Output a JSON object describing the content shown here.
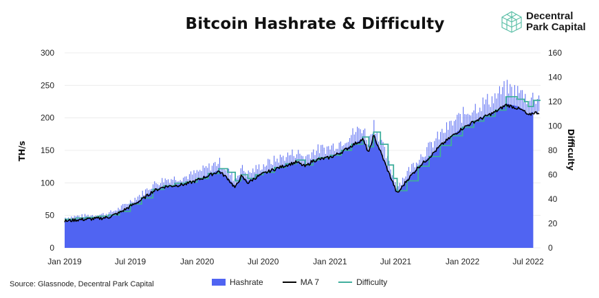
{
  "title": "Bitcoin Hashrate & Difficulty",
  "logo": {
    "line1": "Decentral",
    "line2": "Park Capital",
    "icon": "cube-icon"
  },
  "source": "Source: Glassnode, Decentral Park Capital",
  "colors": {
    "hashrate": "#5064f2",
    "ma7": "#000000",
    "difficulty": "#3fae9c"
  },
  "chart_data": {
    "type": "area",
    "title": "Bitcoin Hashrate & Difficulty",
    "ylabel": "TH/s",
    "y2label": "Difficulty",
    "ylim": [
      0,
      300
    ],
    "y2lim": [
      0,
      160
    ],
    "yticks": [
      "0",
      "50",
      "100",
      "150",
      "200",
      "250",
      "300"
    ],
    "y2ticks": [
      "0",
      "20",
      "40",
      "60",
      "80",
      "100",
      "120",
      "140",
      "160"
    ],
    "xticks": [
      "Jan 2019",
      "Jul 2019",
      "Jan 2020",
      "Jul 2020",
      "Jan 2021",
      "Jul 2021",
      "Jan 2022",
      "Jul 2022"
    ],
    "grid": true,
    "legend_position": "bottom",
    "series": [
      {
        "name": "Hashrate",
        "type": "area",
        "axis": "left",
        "x": [
          "2019-01-01",
          "2019-02-01",
          "2019-03-01",
          "2019-04-01",
          "2019-05-01",
          "2019-06-01",
          "2019-07-01",
          "2019-08-01",
          "2019-09-01",
          "2019-10-01",
          "2019-11-01",
          "2019-12-01",
          "2020-01-01",
          "2020-02-01",
          "2020-03-01",
          "2020-03-25",
          "2020-04-15",
          "2020-05-01",
          "2020-05-20",
          "2020-06-10",
          "2020-07-01",
          "2020-08-01",
          "2020-09-01",
          "2020-10-01",
          "2020-10-25",
          "2020-11-15",
          "2020-12-01",
          "2021-01-01",
          "2021-02-01",
          "2021-03-01",
          "2021-04-01",
          "2021-04-18",
          "2021-05-01",
          "2021-05-20",
          "2021-06-10",
          "2021-06-25",
          "2021-07-05",
          "2021-08-01",
          "2021-09-01",
          "2021-10-01",
          "2021-11-01",
          "2021-12-01",
          "2022-01-01",
          "2022-02-01",
          "2022-03-01",
          "2022-04-01",
          "2022-05-01",
          "2022-06-01",
          "2022-06-20",
          "2022-07-01",
          "2022-07-15"
        ],
        "values": [
          42,
          44,
          45,
          46,
          48,
          55,
          65,
          75,
          88,
          95,
          97,
          99,
          105,
          112,
          120,
          108,
          95,
          112,
          103,
          110,
          115,
          122,
          128,
          133,
          126,
          135,
          137,
          140,
          148,
          158,
          168,
          148,
          175,
          150,
          120,
          100,
          85,
          105,
          125,
          140,
          158,
          172,
          185,
          195,
          202,
          210,
          222,
          218,
          212,
          205,
          210
        ]
      },
      {
        "name": "MA 7",
        "type": "line",
        "axis": "left",
        "x": [
          "2019-01-01",
          "2019-02-01",
          "2019-03-01",
          "2019-04-01",
          "2019-05-01",
          "2019-06-01",
          "2019-07-01",
          "2019-08-01",
          "2019-09-01",
          "2019-10-01",
          "2019-11-01",
          "2019-12-01",
          "2020-01-01",
          "2020-02-01",
          "2020-03-01",
          "2020-03-25",
          "2020-04-15",
          "2020-05-01",
          "2020-05-20",
          "2020-06-10",
          "2020-07-01",
          "2020-08-01",
          "2020-09-01",
          "2020-10-01",
          "2020-10-25",
          "2020-11-15",
          "2020-12-01",
          "2021-01-01",
          "2021-02-01",
          "2021-03-01",
          "2021-04-01",
          "2021-04-18",
          "2021-05-01",
          "2021-05-20",
          "2021-06-10",
          "2021-06-25",
          "2021-07-05",
          "2021-08-01",
          "2021-09-01",
          "2021-10-01",
          "2021-11-01",
          "2021-12-01",
          "2022-01-01",
          "2022-02-01",
          "2022-03-01",
          "2022-04-01",
          "2022-05-01",
          "2022-06-01",
          "2022-06-20",
          "2022-07-01",
          "2022-07-15"
        ],
        "values": [
          41,
          43,
          44,
          45,
          47,
          54,
          64,
          74,
          87,
          94,
          96,
          98,
          104,
          111,
          118,
          107,
          92,
          110,
          100,
          108,
          114,
          121,
          127,
          132,
          125,
          134,
          136,
          139,
          147,
          157,
          167,
          146,
          173,
          148,
          118,
          98,
          83,
          104,
          124,
          139,
          157,
          171,
          184,
          194,
          201,
          209,
          220,
          215,
          210,
          203,
          208
        ]
      },
      {
        "name": "Difficulty",
        "type": "step",
        "axis": "right",
        "x": [
          "2019-01-01",
          "2019-02-01",
          "2019-03-01",
          "2019-04-01",
          "2019-05-01",
          "2019-06-01",
          "2019-07-01",
          "2019-08-01",
          "2019-09-01",
          "2019-10-01",
          "2019-11-01",
          "2019-12-01",
          "2020-01-01",
          "2020-02-01",
          "2020-03-01",
          "2020-03-25",
          "2020-04-15",
          "2020-05-01",
          "2020-05-20",
          "2020-06-10",
          "2020-07-01",
          "2020-08-01",
          "2020-09-01",
          "2020-10-01",
          "2020-10-25",
          "2020-11-15",
          "2020-12-01",
          "2021-01-01",
          "2021-02-01",
          "2021-03-01",
          "2021-04-01",
          "2021-04-18",
          "2021-05-01",
          "2021-05-20",
          "2021-06-10",
          "2021-06-25",
          "2021-07-05",
          "2021-08-01",
          "2021-09-01",
          "2021-10-01",
          "2021-11-01",
          "2021-12-01",
          "2022-01-01",
          "2022-02-01",
          "2022-03-01",
          "2022-04-01",
          "2022-05-01",
          "2022-06-01",
          "2022-06-20",
          "2022-07-01",
          "2022-07-15"
        ],
        "values": [
          23.5,
          24.5,
          25,
          26,
          27,
          30,
          36,
          41,
          48,
          51,
          53,
          54,
          57,
          61,
          65,
          62,
          55,
          60,
          57,
          60,
          62,
          66,
          69,
          72,
          68,
          72,
          74,
          76,
          80,
          85,
          91,
          83,
          95,
          85,
          68,
          57,
          47,
          55,
          67,
          75,
          84,
          92,
          99,
          104,
          108,
          113,
          124,
          122,
          120,
          116,
          121
        ]
      }
    ]
  }
}
